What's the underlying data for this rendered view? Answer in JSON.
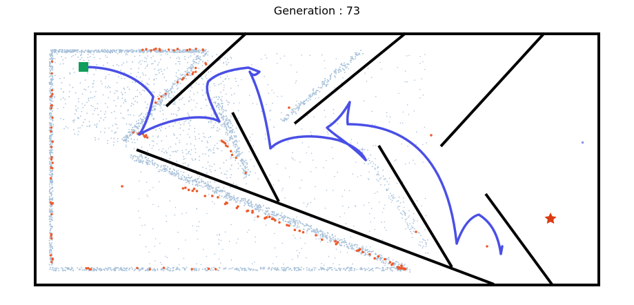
{
  "figure": {
    "title": "Generation : 73"
  },
  "colors": {
    "border": "#000000",
    "walls": "#000000",
    "trajectory": "#4a4fe6",
    "population_light": "#a9c2da",
    "population_highlight": "#ee5a2a",
    "start": "#0f9e5b",
    "goal": "#dd3b12"
  },
  "legend": [],
  "icons": {
    "start": "green-square-icon",
    "goal": "red-star-icon"
  }
}
